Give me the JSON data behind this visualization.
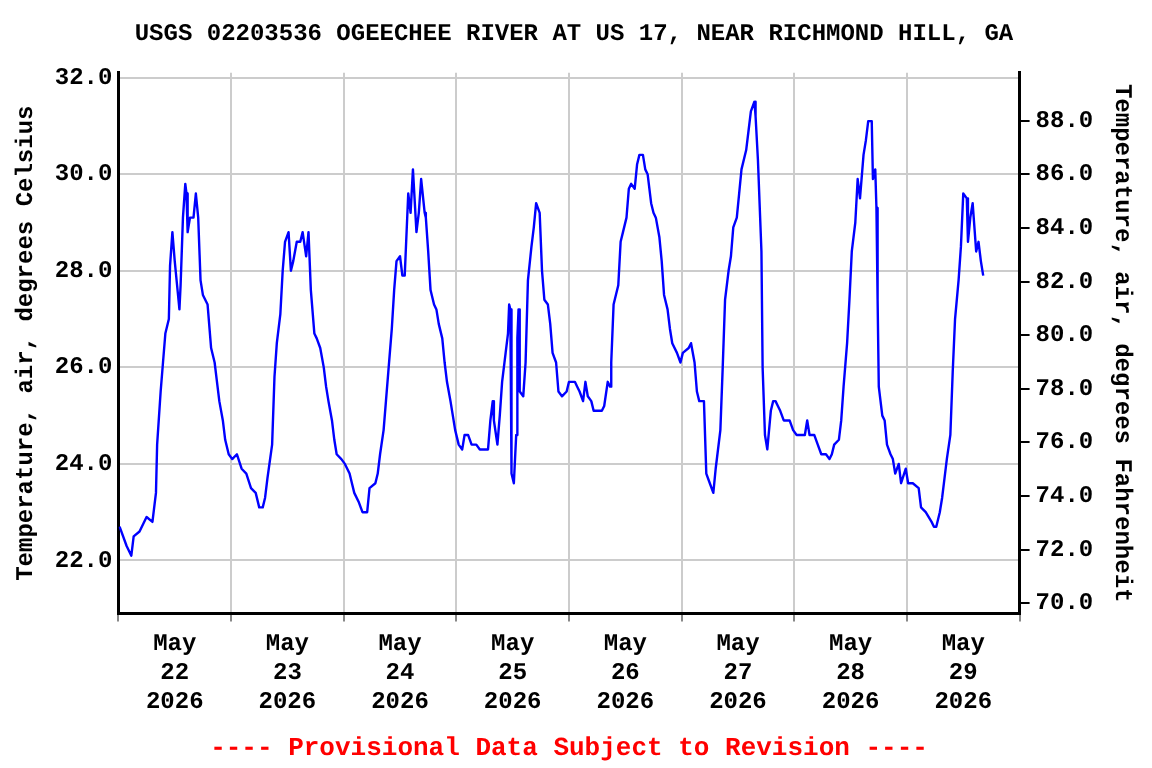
{
  "chart_data": {
    "type": "line",
    "title": "USGS 02203536 OGEECHEE RIVER AT US 17, NEAR RICHMOND HILL, GA",
    "ylabel": "Temperature, air, degrees Celsius",
    "y2label": "Temperature, air, degrees Fahrenheit",
    "annotations": [
      "---- Provisional Data Subject to Revision ----"
    ],
    "x": [
      "2026-05-22T00:15",
      "2026-05-22T01:45",
      "2026-05-22T02:45",
      "2026-05-22T03:15",
      "2026-05-22T04:30",
      "2026-05-22T06:00",
      "2026-05-22T07:15",
      "2026-05-22T08:00",
      "2026-05-22T08:15",
      "2026-05-22T09:00",
      "2026-05-22T09:30",
      "2026-05-22T10:00",
      "2026-05-22T10:45",
      "2026-05-22T11:00",
      "2026-05-22T11:30",
      "2026-05-22T12:00",
      "2026-05-22T12:30",
      "2026-05-22T13:00",
      "2026-05-22T13:15",
      "2026-05-22T13:45",
      "2026-05-22T14:15",
      "2026-05-22T14:30",
      "2026-05-22T14:45",
      "2026-05-22T15:15",
      "2026-05-22T16:00",
      "2026-05-22T16:30",
      "2026-05-22T17:00",
      "2026-05-22T17:30",
      "2026-05-22T18:00",
      "2026-05-22T19:00",
      "2026-05-22T19:45",
      "2026-05-22T20:30",
      "2026-05-22T21:00",
      "2026-05-22T21:30",
      "2026-05-22T22:15",
      "2026-05-22T22:45",
      "2026-05-22T23:30",
      "2026-05-23T00:15",
      "2026-05-23T01:15",
      "2026-05-23T02:15",
      "2026-05-23T03:15",
      "2026-05-23T04:15",
      "2026-05-23T05:15",
      "2026-05-23T06:00",
      "2026-05-23T06:45",
      "2026-05-23T07:15",
      "2026-05-23T07:45",
      "2026-05-23T08:45",
      "2026-05-23T09:15",
      "2026-05-23T09:45",
      "2026-05-23T10:30",
      "2026-05-23T11:00",
      "2026-05-23T11:30",
      "2026-05-23T12:15",
      "2026-05-23T12:45",
      "2026-05-23T13:15",
      "2026-05-23T14:00",
      "2026-05-23T14:45",
      "2026-05-23T15:15",
      "2026-05-23T16:00",
      "2026-05-23T16:30",
      "2026-05-23T17:00",
      "2026-05-23T17:45",
      "2026-05-23T18:15",
      "2026-05-23T19:00",
      "2026-05-23T19:45",
      "2026-05-23T20:15",
      "2026-05-23T20:45",
      "2026-05-23T21:30",
      "2026-05-23T22:00",
      "2026-05-23T22:30",
      "2026-05-23T23:30",
      "2026-05-24T00:15",
      "2026-05-24T01:15",
      "2026-05-24T01:45",
      "2026-05-24T02:15",
      "2026-05-24T03:15",
      "2026-05-24T04:00",
      "2026-05-24T05:00",
      "2026-05-24T05:30",
      "2026-05-24T06:45",
      "2026-05-24T07:15",
      "2026-05-24T07:45",
      "2026-05-24T08:30",
      "2026-05-24T09:00",
      "2026-05-24T09:30",
      "2026-05-24T10:15",
      "2026-05-24T10:45",
      "2026-05-24T11:15",
      "2026-05-24T12:00",
      "2026-05-24T12:30",
      "2026-05-24T13:00",
      "2026-05-24T13:45",
      "2026-05-24T14:15",
      "2026-05-24T14:45",
      "2026-05-24T15:30",
      "2026-05-24T16:00",
      "2026-05-24T16:30",
      "2026-05-24T17:15",
      "2026-05-24T17:30",
      "2026-05-24T18:00",
      "2026-05-24T18:30",
      "2026-05-24T19:15",
      "2026-05-24T19:45",
      "2026-05-24T20:15",
      "2026-05-24T21:00",
      "2026-05-24T21:30",
      "2026-05-24T22:00",
      "2026-05-24T22:45",
      "2026-05-24T23:15",
      "2026-05-24T23:45",
      "2026-05-25T00:30",
      "2026-05-25T01:15",
      "2026-05-25T01:45",
      "2026-05-25T02:30",
      "2026-05-25T03:15",
      "2026-05-25T04:15",
      "2026-05-25T05:00",
      "2026-05-25T06:45",
      "2026-05-25T07:15",
      "2026-05-25T07:45",
      "2026-05-25T08:00",
      "2026-05-25T08:45",
      "2026-05-25T09:15",
      "2026-05-25T09:45",
      "2026-05-25T10:30",
      "2026-05-25T11:00",
      "2026-05-25T11:15",
      "2026-05-25T11:30",
      "2026-05-25T11:45",
      "2026-05-25T12:15",
      "2026-05-25T12:45",
      "2026-05-25T13:00",
      "2026-05-25T13:15",
      "2026-05-25T13:30",
      "2026-05-25T14:15",
      "2026-05-25T14:45",
      "2026-05-25T15:15",
      "2026-05-25T16:00",
      "2026-05-25T16:30",
      "2026-05-25T17:00",
      "2026-05-25T17:45",
      "2026-05-25T18:15",
      "2026-05-25T18:45",
      "2026-05-25T19:30",
      "2026-05-25T20:00",
      "2026-05-25T20:30",
      "2026-05-25T21:15",
      "2026-05-25T21:45",
      "2026-05-25T22:30",
      "2026-05-25T23:30",
      "2026-05-26T00:00",
      "2026-05-26T01:15",
      "2026-05-26T01:45",
      "2026-05-26T02:15",
      "2026-05-26T03:00",
      "2026-05-26T03:30",
      "2026-05-26T04:00",
      "2026-05-26T04:45",
      "2026-05-26T05:15",
      "2026-05-26T06:00",
      "2026-05-26T07:00",
      "2026-05-26T07:30",
      "2026-05-26T08:15",
      "2026-05-26T08:45",
      "2026-05-26T09:00",
      "2026-05-26T09:30",
      "2026-05-26T10:30",
      "2026-05-26T11:00",
      "2026-05-26T11:30",
      "2026-05-26T12:15",
      "2026-05-26T12:45",
      "2026-05-26T13:15",
      "2026-05-26T14:00",
      "2026-05-26T14:30",
      "2026-05-26T15:00",
      "2026-05-26T15:45",
      "2026-05-26T16:15",
      "2026-05-26T16:45",
      "2026-05-26T17:30",
      "2026-05-26T18:00",
      "2026-05-26T18:30",
      "2026-05-26T19:15",
      "2026-05-26T19:45",
      "2026-05-26T20:15",
      "2026-05-26T21:00",
      "2026-05-26T21:30",
      "2026-05-26T22:00",
      "2026-05-26T23:00",
      "2026-05-26T23:45",
      "2026-05-27T00:15",
      "2026-05-27T01:30",
      "2026-05-27T02:00",
      "2026-05-27T02:45",
      "2026-05-27T03:15",
      "2026-05-27T03:45",
      "2026-05-27T04:45",
      "2026-05-27T05:15",
      "2026-05-27T06:00",
      "2026-05-27T06:45",
      "2026-05-27T07:15",
      "2026-05-27T08:15",
      "2026-05-27T08:45",
      "2026-05-27T09:15",
      "2026-05-27T10:00",
      "2026-05-27T10:30",
      "2026-05-27T11:00",
      "2026-05-27T11:45",
      "2026-05-27T12:15",
      "2026-05-27T12:45",
      "2026-05-27T13:45",
      "2026-05-27T14:15",
      "2026-05-27T14:45",
      "2026-05-27T15:30",
      "2026-05-27T15:45",
      "2026-05-27T16:15",
      "2026-05-27T17:00",
      "2026-05-27T17:15",
      "2026-05-27T17:45",
      "2026-05-27T18:15",
      "2026-05-27T19:00",
      "2026-05-27T19:30",
      "2026-05-27T20:00",
      "2026-05-27T20:30",
      "2026-05-27T21:00",
      "2026-05-27T21:45",
      "2026-05-27T23:00",
      "2026-05-27T23:45",
      "2026-05-28T00:30",
      "2026-05-28T01:15",
      "2026-05-28T02:15",
      "2026-05-28T02:45",
      "2026-05-28T03:15",
      "2026-05-28T04:15",
      "2026-05-28T05:00",
      "2026-05-28T05:45",
      "2026-05-28T06:45",
      "2026-05-28T07:30",
      "2026-05-28T08:00",
      "2026-05-28T08:30",
      "2026-05-28T09:30",
      "2026-05-28T10:00",
      "2026-05-28T10:30",
      "2026-05-28T11:15",
      "2026-05-28T11:45",
      "2026-05-28T12:15",
      "2026-05-28T13:00",
      "2026-05-28T13:30",
      "2026-05-28T14:00",
      "2026-05-28T14:45",
      "2026-05-28T15:15",
      "2026-05-28T15:45",
      "2026-05-28T16:30",
      "2026-05-28T16:45",
      "2026-05-28T17:15",
      "2026-05-28T17:30",
      "2026-05-28T17:45",
      "2026-05-28T18:00",
      "2026-05-28T18:45",
      "2026-05-28T19:15",
      "2026-05-28T19:45",
      "2026-05-28T20:30",
      "2026-05-28T21:00",
      "2026-05-28T21:30",
      "2026-05-28T22:15",
      "2026-05-28T22:45",
      "2026-05-28T23:45",
      "2026-05-29T00:15",
      "2026-05-29T01:15",
      "2026-05-29T02:30",
      "2026-05-29T03:00",
      "2026-05-29T04:00",
      "2026-05-29T05:15",
      "2026-05-29T05:45",
      "2026-05-29T06:15",
      "2026-05-29T07:00",
      "2026-05-29T07:30",
      "2026-05-29T08:00",
      "2026-05-29T08:30",
      "2026-05-29T09:15",
      "2026-05-29T09:45",
      "2026-05-29T10:15",
      "2026-05-29T11:00",
      "2026-05-29T11:30",
      "2026-05-29T12:00",
      "2026-05-29T12:45",
      "2026-05-29T13:00",
      "2026-05-29T13:30",
      "2026-05-29T14:00",
      "2026-05-29T14:45",
      "2026-05-29T15:15",
      "2026-05-29T15:45",
      "2026-05-29T16:15"
    ],
    "series": [
      {
        "color": "#0000ff",
        "values": [
          22.7,
          22.3,
          22.1,
          22.5,
          22.6,
          22.9,
          22.8,
          23.4,
          24.4,
          25.5,
          26.1,
          26.7,
          27.0,
          28.1,
          28.8,
          28.2,
          27.7,
          27.2,
          27.7,
          29.1,
          29.8,
          29.6,
          28.8,
          29.1,
          29.1,
          29.6,
          29.1,
          27.8,
          27.5,
          27.3,
          26.4,
          26.1,
          25.7,
          25.3,
          24.9,
          24.5,
          24.2,
          24.1,
          24.2,
          23.9,
          23.8,
          23.5,
          23.4,
          23.1,
          23.1,
          23.3,
          23.7,
          24.4,
          25.8,
          26.5,
          27.1,
          28.0,
          28.6,
          28.8,
          28.0,
          28.2,
          28.6,
          28.6,
          28.8,
          28.3,
          28.8,
          27.6,
          26.7,
          26.6,
          26.4,
          26.0,
          25.6,
          25.3,
          24.9,
          24.5,
          24.2,
          24.1,
          24.0,
          23.8,
          23.6,
          23.4,
          23.2,
          23.0,
          23.0,
          23.5,
          23.6,
          23.8,
          24.2,
          24.7,
          25.3,
          25.9,
          26.8,
          27.6,
          28.2,
          28.3,
          27.9,
          27.9,
          29.6,
          29.2,
          30.1,
          28.8,
          29.2,
          29.9,
          29.2,
          29.1,
          28.4,
          27.6,
          27.3,
          27.2,
          26.9,
          26.6,
          26.1,
          25.7,
          25.3,
          25.0,
          24.7,
          24.4,
          24.3,
          24.6,
          24.6,
          24.4,
          24.4,
          24.3,
          24.3,
          24.9,
          25.3,
          24.9,
          24.4,
          25.0,
          25.7,
          26.3,
          26.7,
          27.3,
          27.2,
          23.8,
          23.6,
          24.6,
          26.6,
          27.2,
          25.5,
          25.4,
          26.1,
          27.8,
          28.5,
          28.9,
          29.4,
          29.2,
          28.0,
          27.4,
          27.3,
          26.9,
          26.3,
          26.1,
          25.5,
          25.4,
          25.5,
          25.7,
          25.7,
          25.6,
          25.5,
          25.3,
          25.7,
          25.4,
          25.3,
          25.1,
          25.1,
          25.1,
          25.2,
          25.7,
          25.6,
          26.1,
          27.3,
          27.7,
          28.6,
          28.8,
          29.1,
          29.7,
          29.8,
          29.7,
          30.2,
          30.4,
          30.4,
          30.1,
          30.0,
          29.4,
          29.2,
          29.1,
          28.7,
          28.2,
          27.5,
          27.2,
          26.8,
          26.5,
          26.3,
          26.1,
          26.3,
          26.4,
          26.5,
          26.1,
          25.5,
          25.3,
          25.3,
          23.8,
          23.6,
          23.4,
          23.9,
          24.7,
          26.0,
          27.4,
          28.0,
          28.3,
          28.9,
          29.1,
          29.6,
          30.1,
          30.5,
          30.9,
          31.3,
          31.5,
          31.2,
          30.3,
          28.4,
          26.0,
          24.6,
          24.3,
          25.1,
          25.3,
          25.3,
          25.2,
          25.1,
          24.9,
          24.9,
          24.7,
          24.6,
          24.6,
          24.6,
          24.9,
          24.6,
          24.6,
          24.4,
          24.2,
          24.2,
          24.1,
          24.2,
          24.4,
          24.5,
          24.9,
          25.6,
          26.5,
          27.4,
          28.4,
          29.0,
          29.9,
          29.5,
          30.4,
          30.7,
          31.1,
          31.1,
          29.9,
          30.1,
          29.3,
          27.4,
          25.6,
          25.0,
          24.9,
          24.4,
          24.2,
          24.1,
          23.8,
          24.0,
          23.6,
          23.9,
          23.6,
          23.6,
          23.5,
          23.1,
          23.0,
          22.8,
          22.7,
          22.7,
          23.0,
          23.3,
          23.7,
          24.1,
          24.6,
          25.9,
          27.0,
          27.8,
          28.5,
          29.6,
          29.5,
          28.6,
          29.1,
          29.4,
          28.4,
          28.6,
          28.2,
          27.9
        ]
      }
    ],
    "xlim": [
      "2026-05-22T00:00",
      "2026-05-30T00:00"
    ],
    "xticks": [
      {
        "value": "2026-05-22T00:00",
        "label": null
      },
      {
        "value": "2026-05-22T12:00",
        "label": "May 22 2026"
      },
      {
        "value": "2026-05-23T00:00",
        "label": null
      },
      {
        "value": "2026-05-23T12:00",
        "label": "May 23 2026"
      },
      {
        "value": "2026-05-24T00:00",
        "label": null
      },
      {
        "value": "2026-05-24T12:00",
        "label": "May 24 2026"
      },
      {
        "value": "2026-05-25T00:00",
        "label": null
      },
      {
        "value": "2026-05-25T12:00",
        "label": "May 25 2026"
      },
      {
        "value": "2026-05-26T00:00",
        "label": null
      },
      {
        "value": "2026-05-26T12:00",
        "label": "May 26 2026"
      },
      {
        "value": "2026-05-27T00:00",
        "label": null
      },
      {
        "value": "2026-05-27T12:00",
        "label": "May 27 2026"
      },
      {
        "value": "2026-05-28T00:00",
        "label": null
      },
      {
        "value": "2026-05-28T12:00",
        "label": "May 28 2026"
      },
      {
        "value": "2026-05-29T00:00",
        "label": null
      },
      {
        "value": "2026-05-29T12:00",
        "label": "May 29 2026"
      },
      {
        "value": "2026-05-30T00:00",
        "label": null
      }
    ],
    "ylim": [
      20.9,
      32.1
    ],
    "yticks": [
      {
        "value": 22,
        "label": "22.0"
      },
      {
        "value": 24,
        "label": "24.0"
      },
      {
        "value": 26,
        "label": "26.0"
      },
      {
        "value": 28,
        "label": "28.0"
      },
      {
        "value": 30,
        "label": "30.0"
      },
      {
        "value": 32,
        "label": "32.0"
      }
    ],
    "y2lim": [
      69.62,
      89.78
    ],
    "y2ticks": [
      {
        "value": 70,
        "label": "70.0"
      },
      {
        "value": 72,
        "label": "72.0"
      },
      {
        "value": 74,
        "label": "74.0"
      },
      {
        "value": 76,
        "label": "76.0"
      },
      {
        "value": 78,
        "label": "78.0"
      },
      {
        "value": 80,
        "label": "80.0"
      },
      {
        "value": 82,
        "label": "82.0"
      },
      {
        "value": 84,
        "label": "84.0"
      },
      {
        "value": 86,
        "label": "86.0"
      },
      {
        "value": 88,
        "label": "88.0"
      }
    ],
    "grid": true,
    "legend": false,
    "marker": "none",
    "line_style": "solid"
  }
}
